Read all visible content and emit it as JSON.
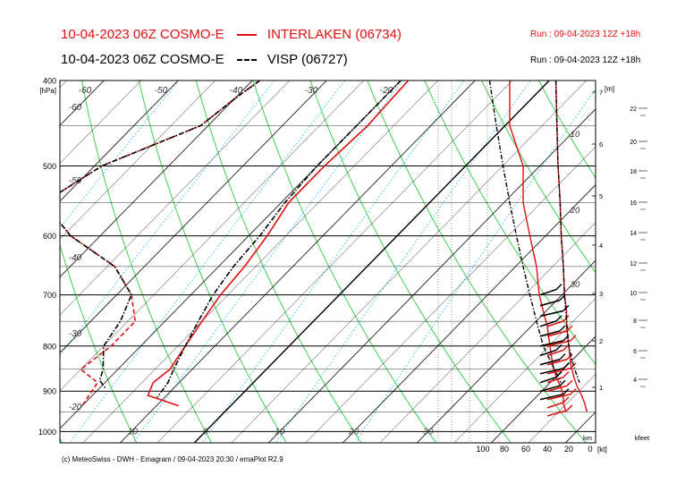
{
  "header": {
    "line1": {
      "date_model": "10-04-2023 06Z COSMO-E",
      "station": "INTERLAKEN (06734)",
      "run": "Run : 09-04-2023 12Z +18h",
      "color": "#e01010"
    },
    "line2": {
      "date_model": "10-04-2023 06Z COSMO-E",
      "station": "VISP (06727)",
      "run": "Run : 09-04-2023 12Z +18h",
      "color": "#000000"
    }
  },
  "footer": {
    "credit": "(c) MeteoSwiss - DWH - Emagram / 09-04-2023  20:30 / emaPlot R2.9"
  },
  "chart_data": {
    "type": "line",
    "diagram": "emagram",
    "pressure_axis": {
      "label": "[hPa]",
      "ticks": [
        400,
        500,
        600,
        700,
        800,
        900,
        1000
      ],
      "ylim": [
        1030,
        400
      ],
      "scale": "log"
    },
    "temperature_axis": {
      "ticks": [
        -10,
        0,
        10,
        20,
        30
      ],
      "xlim": [
        -25,
        45
      ]
    },
    "isotherm_labels": [
      -60,
      -50,
      -40,
      -30,
      -20,
      -60,
      -50,
      -40,
      -30,
      -20,
      -10,
      0,
      10,
      20,
      30
    ],
    "height_km_axis": {
      "label": "[m]",
      "unit_label": "km",
      "ticks": [
        1,
        2,
        3,
        4,
        5,
        6,
        7
      ]
    },
    "height_kfeet_axis": {
      "unit_label": "kfeet",
      "ticks": [
        4,
        6,
        8,
        10,
        12,
        14,
        16,
        18,
        20,
        22
      ]
    },
    "wind_axis": {
      "unit_label": "[kt]",
      "ticks": [
        "100",
        "80",
        "60",
        "40",
        "20",
        "0"
      ]
    },
    "wind_profile_labels": [
      "10",
      "20",
      "30"
    ],
    "colors": {
      "interlaken": "#e01010",
      "visp": "#000000",
      "isotherm": "#222222",
      "dry_adiabat": "#2ecc40",
      "mixing_ratio": "#3ec8f0",
      "grid": "#000000"
    },
    "series": [
      {
        "name": "INTERLAKEN (06734)",
        "variable": "temperature",
        "style": "solid",
        "points": [
          [
            -19,
            400
          ],
          [
            -18.5,
            450
          ],
          [
            -19,
            500
          ],
          [
            -19,
            550
          ],
          [
            -17.5,
            600
          ],
          [
            -16.5,
            650
          ],
          [
            -16,
            700
          ],
          [
            -15,
            750
          ],
          [
            -14,
            800
          ],
          [
            -13,
            850
          ],
          [
            -13.5,
            880
          ],
          [
            -12.5,
            910
          ],
          [
            -7,
            935
          ]
        ]
      },
      {
        "name": "INTERLAKEN (06734)",
        "variable": "dewpoint",
        "style": "dashed",
        "points": [
          [
            -39,
            400
          ],
          [
            -40,
            420
          ],
          [
            -41,
            450
          ],
          [
            -49,
            500
          ],
          [
            -52,
            550
          ],
          [
            -44,
            600
          ],
          [
            -34,
            650
          ],
          [
            -28,
            700
          ],
          [
            -24,
            750
          ],
          [
            -24,
            800
          ],
          [
            -25,
            850
          ],
          [
            -21,
            880
          ],
          [
            -20,
            935
          ]
        ]
      },
      {
        "name": "VISP (06727)",
        "variable": "temperature",
        "style": "dash-dot",
        "points": [
          [
            -20,
            400
          ],
          [
            -20,
            450
          ],
          [
            -20,
            500
          ],
          [
            -19.5,
            550
          ],
          [
            -18.5,
            600
          ],
          [
            -18,
            650
          ],
          [
            -17,
            700
          ],
          [
            -15.5,
            750
          ],
          [
            -14,
            800
          ],
          [
            -12.5,
            850
          ],
          [
            -11.5,
            880
          ],
          [
            -11,
            915
          ]
        ]
      },
      {
        "name": "VISP (06727)",
        "variable": "dewpoint",
        "style": "dash-dot",
        "points": [
          [
            -39,
            400
          ],
          [
            -40,
            420
          ],
          [
            -41,
            450
          ],
          [
            -49,
            500
          ],
          [
            -52,
            550
          ],
          [
            -44,
            600
          ],
          [
            -34,
            650
          ],
          [
            -28,
            700
          ],
          [
            -26,
            750
          ],
          [
            -25,
            800
          ],
          [
            -22,
            850
          ],
          [
            -21,
            875
          ],
          [
            -19,
            895
          ]
        ]
      }
    ],
    "wind_profiles": [
      {
        "name": "INTERLAKEN (06734)",
        "color": "#e01010",
        "speed": {
          "knots": [
            32,
            31,
            30,
            28,
            27,
            25,
            24,
            22,
            22,
            20,
            18,
            15,
            12,
            8,
            5,
            3
          ],
          "hPa": [
            400,
            450,
            500,
            550,
            600,
            650,
            700,
            730,
            760,
            800,
            840,
            870,
            890,
            910,
            930,
            950
          ]
        },
        "direction": {
          "deg": [
            6,
            6,
            5,
            5,
            4.5,
            4,
            3.8,
            3.5,
            3.2,
            3,
            2.8,
            2.5,
            2.2,
            2,
            2,
            1.8
          ],
          "hPa": [
            400,
            450,
            500,
            550,
            600,
            650,
            700,
            730,
            760,
            800,
            840,
            870,
            890,
            910,
            930,
            950
          ]
        },
        "barbs_hPa": [
          760,
          780,
          800,
          820,
          840,
          860,
          880,
          900,
          920,
          940,
          960
        ]
      },
      {
        "name": "VISP (06727)",
        "color": "#000000",
        "speed": {
          "knots": [
            32,
            31,
            30,
            28,
            27,
            25,
            24,
            22,
            20,
            17,
            13,
            10
          ],
          "hPa": [
            400,
            450,
            500,
            550,
            600,
            650,
            700,
            750,
            800,
            830,
            860,
            880
          ]
        },
        "direction": {
          "deg": [
            7.5,
            7,
            6.5,
            6,
            5.5,
            5,
            4.5,
            4,
            3.5,
            3,
            2.5,
            2.2
          ],
          "hPa": [
            400,
            450,
            500,
            550,
            600,
            650,
            700,
            750,
            800,
            830,
            860,
            880
          ]
        },
        "barbs_hPa": [
          700,
          720,
          740,
          760,
          780,
          800,
          820,
          840,
          860,
          880,
          900,
          920
        ]
      }
    ]
  }
}
